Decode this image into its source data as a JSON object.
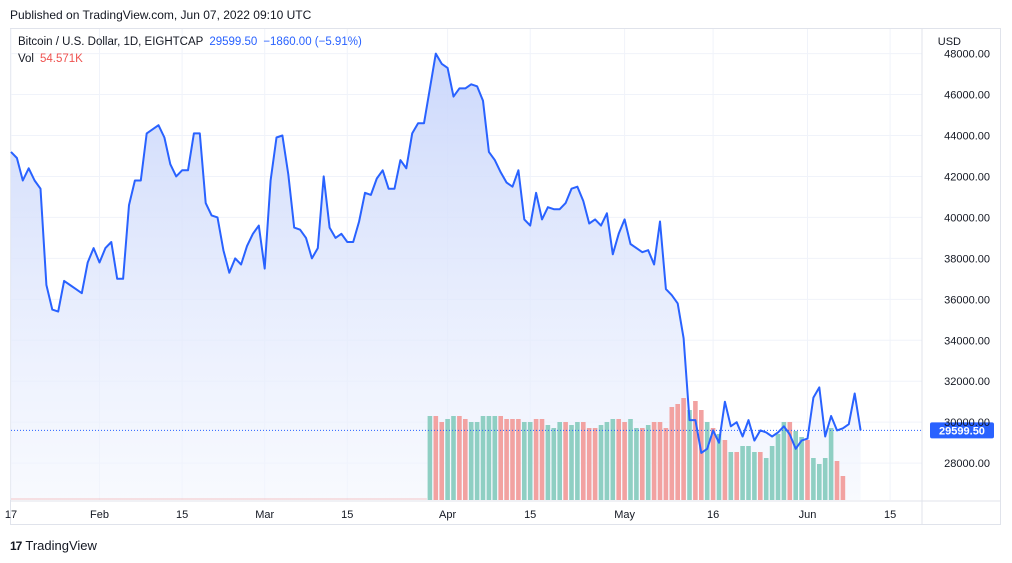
{
  "header": {
    "published": "Published on TradingView.com, Jun 07, 2022 09:10 UTC"
  },
  "legend": {
    "symbol": "Bitcoin / U.S. Dollar, 1D, EIGHTCAP",
    "last": "29599.50",
    "change": "−1860.00 (−5.91%)",
    "vol_label": "Vol",
    "vol_value": "54.571K"
  },
  "footer": {
    "logo": "17",
    "brand": "TradingView"
  },
  "colors": {
    "line": "#2962ff",
    "area_top": "#c9d6fb",
    "area_bottom": "#f3f6fe",
    "vol_up": "#8fcfc3",
    "vol_down": "#f2a2a1",
    "grid": "#f0f3fa",
    "badge": "#2962ff"
  },
  "chart_data": {
    "type": "area",
    "currency": "USD",
    "ylim": [
      26200,
      49200
    ],
    "y_ticks": [
      "48000.00",
      "46000.00",
      "44000.00",
      "42000.00",
      "40000.00",
      "38000.00",
      "36000.00",
      "34000.00",
      "32000.00",
      "30000.00",
      "28000.00"
    ],
    "x_ticks": [
      "17",
      "Feb",
      "15",
      "Mar",
      "15",
      "Apr",
      "15",
      "May",
      "16",
      "Jun",
      "15"
    ],
    "x_tick_days": [
      0,
      15,
      29,
      43,
      57,
      74,
      88,
      104,
      119,
      135,
      149
    ],
    "last_value": 29599.5,
    "last_label": "29599.50",
    "series": [
      {
        "values": [
          43200,
          42900,
          41800,
          42400,
          41800,
          41400,
          36700,
          35500,
          35400,
          36900,
          36700,
          36500,
          36300,
          37800,
          38500,
          37800,
          38500,
          38800,
          37000,
          37000,
          40600,
          41800,
          41800,
          44100,
          44300,
          44500,
          43900,
          42600,
          42000,
          42300,
          42300,
          44100,
          44100,
          40700,
          40100,
          40000,
          38400,
          37300,
          38000,
          37700,
          38600,
          39200,
          39600,
          37500,
          41800,
          43900,
          44000,
          42100,
          39500,
          39400,
          39000,
          38000,
          38500,
          42000,
          39500,
          39000,
          39200,
          38800,
          38800,
          39800,
          41200,
          41100,
          41900,
          42300,
          41400,
          41400,
          42800,
          42400,
          44100,
          44600,
          44600,
          46300,
          48000,
          47500,
          47300,
          45900,
          46300,
          46300,
          46500,
          46400,
          45700,
          43200,
          42800,
          42200,
          41700,
          41500,
          42300,
          39900,
          39600,
          41200,
          39900,
          40500,
          40400,
          40400,
          40700,
          41400,
          41500,
          40800,
          39700,
          39900,
          39600,
          40200,
          38200,
          39200,
          39900,
          38700,
          38500,
          38300,
          38400,
          37700,
          39800,
          36500,
          36200,
          35800,
          34100,
          30100,
          30100,
          28500,
          28700,
          29600,
          29000,
          31000,
          29800,
          30000,
          29300,
          30100,
          29100,
          29600,
          29500,
          29300,
          29500,
          29800,
          29400,
          28700,
          29100,
          29200,
          31200,
          31700,
          29300,
          30300,
          29600,
          29700,
          29900,
          31400,
          29600
        ]
      }
    ],
    "volume": {
      "start_day": 71,
      "values": [
        28,
        28,
        26,
        27,
        28,
        28,
        27,
        26,
        26,
        28,
        28,
        28,
        28,
        27,
        27,
        27,
        26,
        26,
        27,
        27,
        25,
        24,
        26,
        26,
        25,
        26,
        26,
        24,
        24,
        25,
        26,
        27,
        27,
        26,
        27,
        24,
        24,
        25,
        26,
        26,
        24,
        31,
        32,
        34,
        30,
        33,
        30,
        26,
        24,
        22,
        20,
        16,
        16,
        18,
        18,
        16,
        16,
        14,
        18,
        22,
        26,
        26,
        23,
        21,
        20,
        14,
        12,
        14,
        24,
        13,
        8
      ],
      "up": [
        1,
        0,
        0,
        1,
        1,
        0,
        0,
        1,
        1,
        1,
        1,
        1,
        0,
        0,
        0,
        0,
        1,
        1,
        0,
        0,
        1,
        1,
        1,
        0,
        1,
        1,
        0,
        0,
        0,
        1,
        1,
        1,
        0,
        0,
        1,
        1,
        0,
        1,
        0,
        0,
        0,
        0,
        0,
        0,
        1,
        0,
        0,
        1,
        0,
        1,
        0,
        1,
        0,
        1,
        1,
        1,
        0,
        1,
        1,
        1,
        1,
        0,
        1,
        1,
        0,
        1,
        1,
        1,
        1,
        0,
        0
      ]
    },
    "volume_last": "54.571K"
  }
}
